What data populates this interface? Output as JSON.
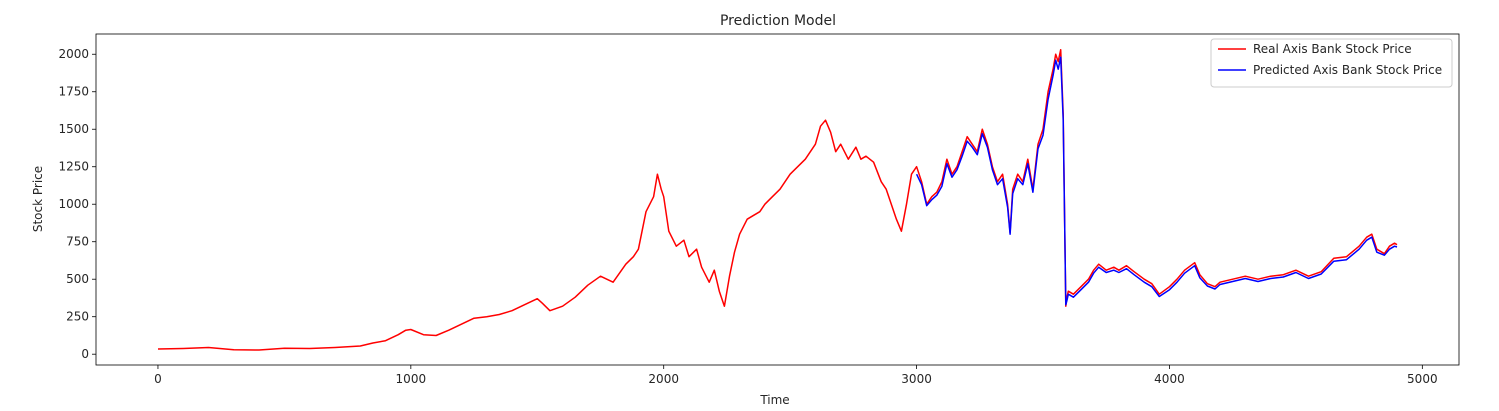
{
  "chart_data": {
    "type": "line",
    "title": "Prediction Model",
    "xlabel": "Time",
    "ylabel": "Stock Price",
    "xlim": [
      -245,
      5145
    ],
    "ylim": [
      -72,
      2135
    ],
    "xticks": [
      0,
      1000,
      2000,
      3000,
      4000,
      5000
    ],
    "xtick_labels": [
      "0",
      "1000",
      "2000",
      "3000",
      "4000",
      "5000"
    ],
    "yticks": [
      0,
      250,
      500,
      750,
      1000,
      1250,
      1500,
      1750,
      2000
    ],
    "ytick_labels": [
      "0",
      "250",
      "500",
      "750",
      "1000",
      "1250",
      "1500",
      "1750",
      "2000"
    ],
    "grid": false,
    "legend_position": "upper right",
    "series": [
      {
        "name": "Real Axis Bank Stock Price",
        "color": "#ff0000",
        "x": [
          0,
          100,
          200,
          300,
          400,
          500,
          600,
          700,
          800,
          850,
          900,
          950,
          980,
          1000,
          1050,
          1100,
          1150,
          1200,
          1250,
          1300,
          1350,
          1400,
          1450,
          1500,
          1520,
          1550,
          1600,
          1650,
          1700,
          1750,
          1800,
          1850,
          1880,
          1900,
          1930,
          1960,
          1975,
          1990,
          2000,
          2020,
          2050,
          2080,
          2100,
          2130,
          2150,
          2180,
          2200,
          2220,
          2240,
          2260,
          2280,
          2300,
          2330,
          2350,
          2380,
          2400,
          2430,
          2460,
          2500,
          2530,
          2560,
          2600,
          2620,
          2640,
          2660,
          2680,
          2700,
          2730,
          2760,
          2780,
          2800,
          2830,
          2860,
          2880,
          2900,
          2920,
          2940,
          2960,
          2980,
          3000,
          3020,
          3040,
          3060,
          3080,
          3100,
          3120,
          3140,
          3160,
          3180,
          3200,
          3220,
          3240,
          3260,
          3280,
          3300,
          3320,
          3340,
          3360,
          3370,
          3380,
          3400,
          3420,
          3440,
          3460,
          3480,
          3500,
          3520,
          3540,
          3550,
          3560,
          3570,
          3580,
          3590,
          3595,
          3600,
          3620,
          3650,
          3680,
          3700,
          3720,
          3750,
          3780,
          3800,
          3830,
          3860,
          3900,
          3930,
          3960,
          4000,
          4030,
          4060,
          4100,
          4120,
          4150,
          4180,
          4200,
          4250,
          4300,
          4350,
          4400,
          4450,
          4500,
          4550,
          4600,
          4650,
          4700,
          4750,
          4780,
          4800,
          4820,
          4850,
          4870,
          4890,
          4900
        ],
        "y": [
          35,
          38,
          45,
          30,
          28,
          40,
          38,
          45,
          55,
          75,
          90,
          130,
          160,
          165,
          130,
          125,
          160,
          200,
          240,
          250,
          265,
          290,
          330,
          370,
          340,
          290,
          320,
          380,
          460,
          520,
          480,
          600,
          650,
          700,
          950,
          1050,
          1200,
          1100,
          1050,
          820,
          720,
          760,
          650,
          700,
          580,
          480,
          560,
          420,
          320,
          520,
          680,
          800,
          900,
          920,
          950,
          1000,
          1050,
          1100,
          1200,
          1250,
          1300,
          1400,
          1520,
          1560,
          1480,
          1350,
          1400,
          1300,
          1380,
          1300,
          1320,
          1280,
          1150,
          1100,
          1000,
          900,
          820,
          1000,
          1200,
          1250,
          1150,
          1000,
          1050,
          1080,
          1150,
          1300,
          1200,
          1250,
          1350,
          1450,
          1400,
          1350,
          1500,
          1400,
          1250,
          1150,
          1200,
          1000,
          810,
          1100,
          1200,
          1150,
          1300,
          1100,
          1400,
          1500,
          1750,
          1900,
          2000,
          1950,
          2030,
          1600,
          320,
          380,
          420,
          400,
          450,
          500,
          560,
          600,
          560,
          580,
          560,
          590,
          550,
          500,
          470,
          400,
          450,
          500,
          560,
          610,
          530,
          470,
          450,
          480,
          500,
          520,
          500,
          520,
          530,
          560,
          520,
          550,
          640,
          650,
          720,
          780,
          800,
          700,
          670,
          720,
          740,
          730
        ]
      },
      {
        "name": "Predicted Axis Bank Stock Price",
        "color": "#0000ff",
        "x": [
          3000,
          3020,
          3040,
          3060,
          3080,
          3100,
          3120,
          3140,
          3160,
          3180,
          3200,
          3220,
          3240,
          3260,
          3280,
          3300,
          3320,
          3340,
          3360,
          3370,
          3380,
          3400,
          3420,
          3440,
          3460,
          3480,
          3500,
          3520,
          3540,
          3550,
          3560,
          3570,
          3580,
          3590,
          3595,
          3600,
          3620,
          3650,
          3680,
          3700,
          3720,
          3750,
          3780,
          3800,
          3830,
          3860,
          3900,
          3930,
          3960,
          4000,
          4030,
          4060,
          4100,
          4120,
          4150,
          4180,
          4200,
          4250,
          4300,
          4350,
          4400,
          4450,
          4500,
          4550,
          4600,
          4650,
          4700,
          4750,
          4780,
          4800,
          4820,
          4850,
          4870,
          4890,
          4900
        ],
        "y": [
          1200,
          1130,
          990,
          1030,
          1060,
          1120,
          1270,
          1180,
          1230,
          1320,
          1420,
          1380,
          1330,
          1470,
          1380,
          1230,
          1130,
          1170,
          980,
          800,
          1070,
          1170,
          1130,
          1270,
          1080,
          1370,
          1460,
          1700,
          1860,
          1960,
          1900,
          1980,
          1560,
          330,
          360,
          400,
          380,
          430,
          480,
          540,
          580,
          545,
          560,
          545,
          570,
          530,
          480,
          450,
          385,
          430,
          480,
          540,
          590,
          510,
          455,
          435,
          465,
          485,
          505,
          485,
          505,
          515,
          545,
          505,
          535,
          620,
          630,
          700,
          760,
          780,
          680,
          660,
          700,
          720,
          715
        ]
      }
    ]
  }
}
